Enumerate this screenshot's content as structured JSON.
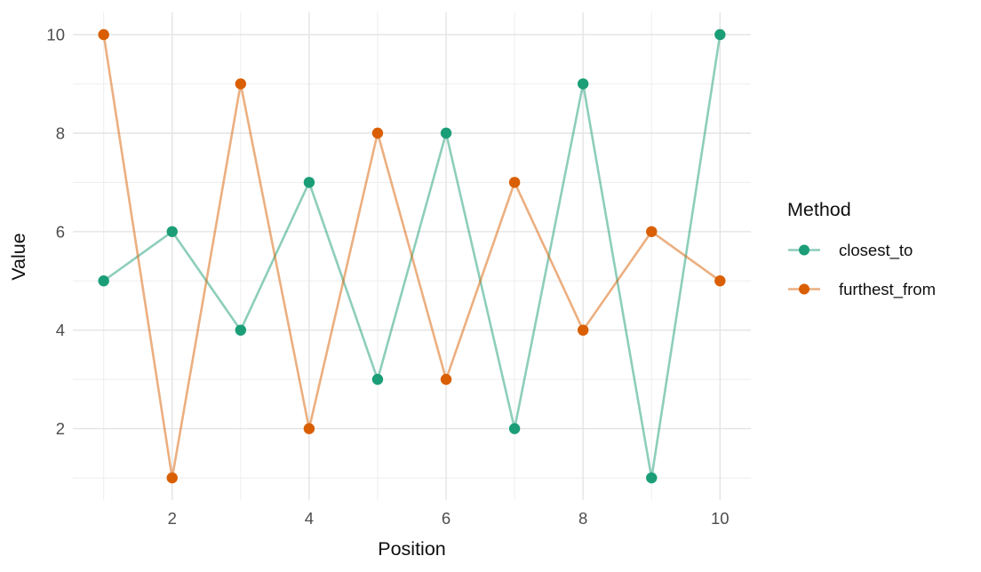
{
  "chart_data": {
    "type": "line",
    "title": "",
    "xlabel": "Position",
    "ylabel": "Value",
    "x": [
      1,
      2,
      3,
      4,
      5,
      6,
      7,
      8,
      9,
      10
    ],
    "series": [
      {
        "name": "closest_to",
        "color": "#1b9e77",
        "values": [
          5,
          6,
          4,
          7,
          3,
          8,
          2,
          9,
          1,
          10
        ]
      },
      {
        "name": "furthest_from",
        "color": "#d95f02",
        "values": [
          10,
          1,
          9,
          2,
          8,
          3,
          7,
          4,
          6,
          5
        ]
      }
    ],
    "legend_title": "Method",
    "legend_position": "right",
    "x_ticks": [
      2,
      4,
      6,
      8,
      10
    ],
    "y_ticks": [
      2,
      4,
      6,
      8,
      10
    ],
    "x_minor": [
      1,
      3,
      5,
      7,
      9
    ],
    "y_minor": [
      1,
      3,
      5,
      7,
      9
    ],
    "xlim": [
      0.55,
      10.45
    ],
    "ylim": [
      0.55,
      10.45
    ],
    "grid": {
      "on": true,
      "major_color": "#e4e4e4",
      "minor_color": "#eeeeee"
    },
    "style": {
      "background": "#ffffff",
      "line_opacity": 0.5,
      "tick_label_color": "#4d4d4d",
      "axis_title_color": "#0f0f0f"
    }
  }
}
